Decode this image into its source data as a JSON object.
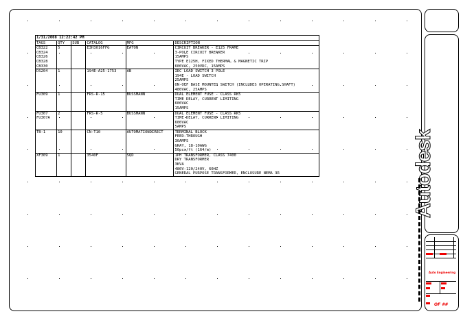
{
  "report": {
    "date": "1/31/2008 12:22:42 PM",
    "columns": [
      "TAGS",
      "QTY",
      "SUB",
      "CATALOG",
      "MFG",
      "DESCRIPTION"
    ],
    "rows": [
      {
        "tags": [
          "CB322",
          "CB324",
          "CB326",
          "CB328",
          "CB330"
        ],
        "qty": "5",
        "sub": "",
        "catalog": "E3H3016FFG",
        "mfg": "EATON",
        "description": [
          "CIRCUIT BREAKER - E125 FRAME",
          "3-POLE CIRCUIT BREAKER",
          "15AMPS",
          "TYPE E125H, FIXED THERMAL & MAGNETIC TRIP",
          "600VAC, 250VDC, 15AMPS"
        ]
      },
      {
        "tags": [
          "DS204"
        ],
        "qty": "1",
        "sub": "",
        "catalog": "194E-A25-1753",
        "mfg": "AB",
        "description": [
          "IEC LOAD SWITCH 3 POLE",
          "194E - LOAD SWITCH",
          "25AMPS",
          "ON-OFF BASE MOUNTED SWITCH (INCLUDES OPERATING SHAFT)",
          "480VAC, 25AMPS"
        ]
      },
      {
        "tags": [
          "FU309"
        ],
        "qty": "1",
        "sub": "",
        "catalog": "FRS-R-15",
        "mfg": "BUSSMANN",
        "description": [
          "DUAL ELEMENT FUSE - CLASS RK5",
          "TIME DELAY, CURRENT LIMITING",
          "600VAC",
          "15AMPS"
        ]
      },
      {
        "tags": [
          "FU307",
          "FU307A"
        ],
        "qty": "2",
        "sub": "",
        "catalog": "FRS-R-5",
        "mfg": "BUSSMANN",
        "description": [
          "DUAL ELEMENT FUSE - CLASS RK5",
          "TIME DELAY, CURRENT LIMITING",
          "600VAC",
          "5AMPS"
        ]
      },
      {
        "tags": [
          "TB-1"
        ],
        "qty": "10",
        "sub": "",
        "catalog": "CN-T10",
        "mfg": "AUTOMATIONDIRECT",
        "description": [
          "TERMINAL BLOCK",
          "FEED-THROUGH",
          "30AMPS",
          "GRAY, 18-10AWG",
          "50pcs/ft (164/m)"
        ]
      },
      {
        "tags": [
          "XF309"
        ],
        "qty": "1",
        "sub": "",
        "catalog": "3540F",
        "mfg": "SQD",
        "description": [
          "1PH TRANSFORMER, CLASS 7400",
          "DRY TRANSFORMER",
          "3KVA",
          "480V-120/240V, 60HZ",
          "GENERAL PURPOSE TRANSFORMER, ENCLOSURE NEMA 3R"
        ]
      }
    ]
  },
  "title_block": {
    "logo": "Autodesk",
    "company": "Auto Engineering",
    "sheet": "OF ##"
  },
  "colors": {
    "accent": "#e00000",
    "line": "#000000"
  }
}
